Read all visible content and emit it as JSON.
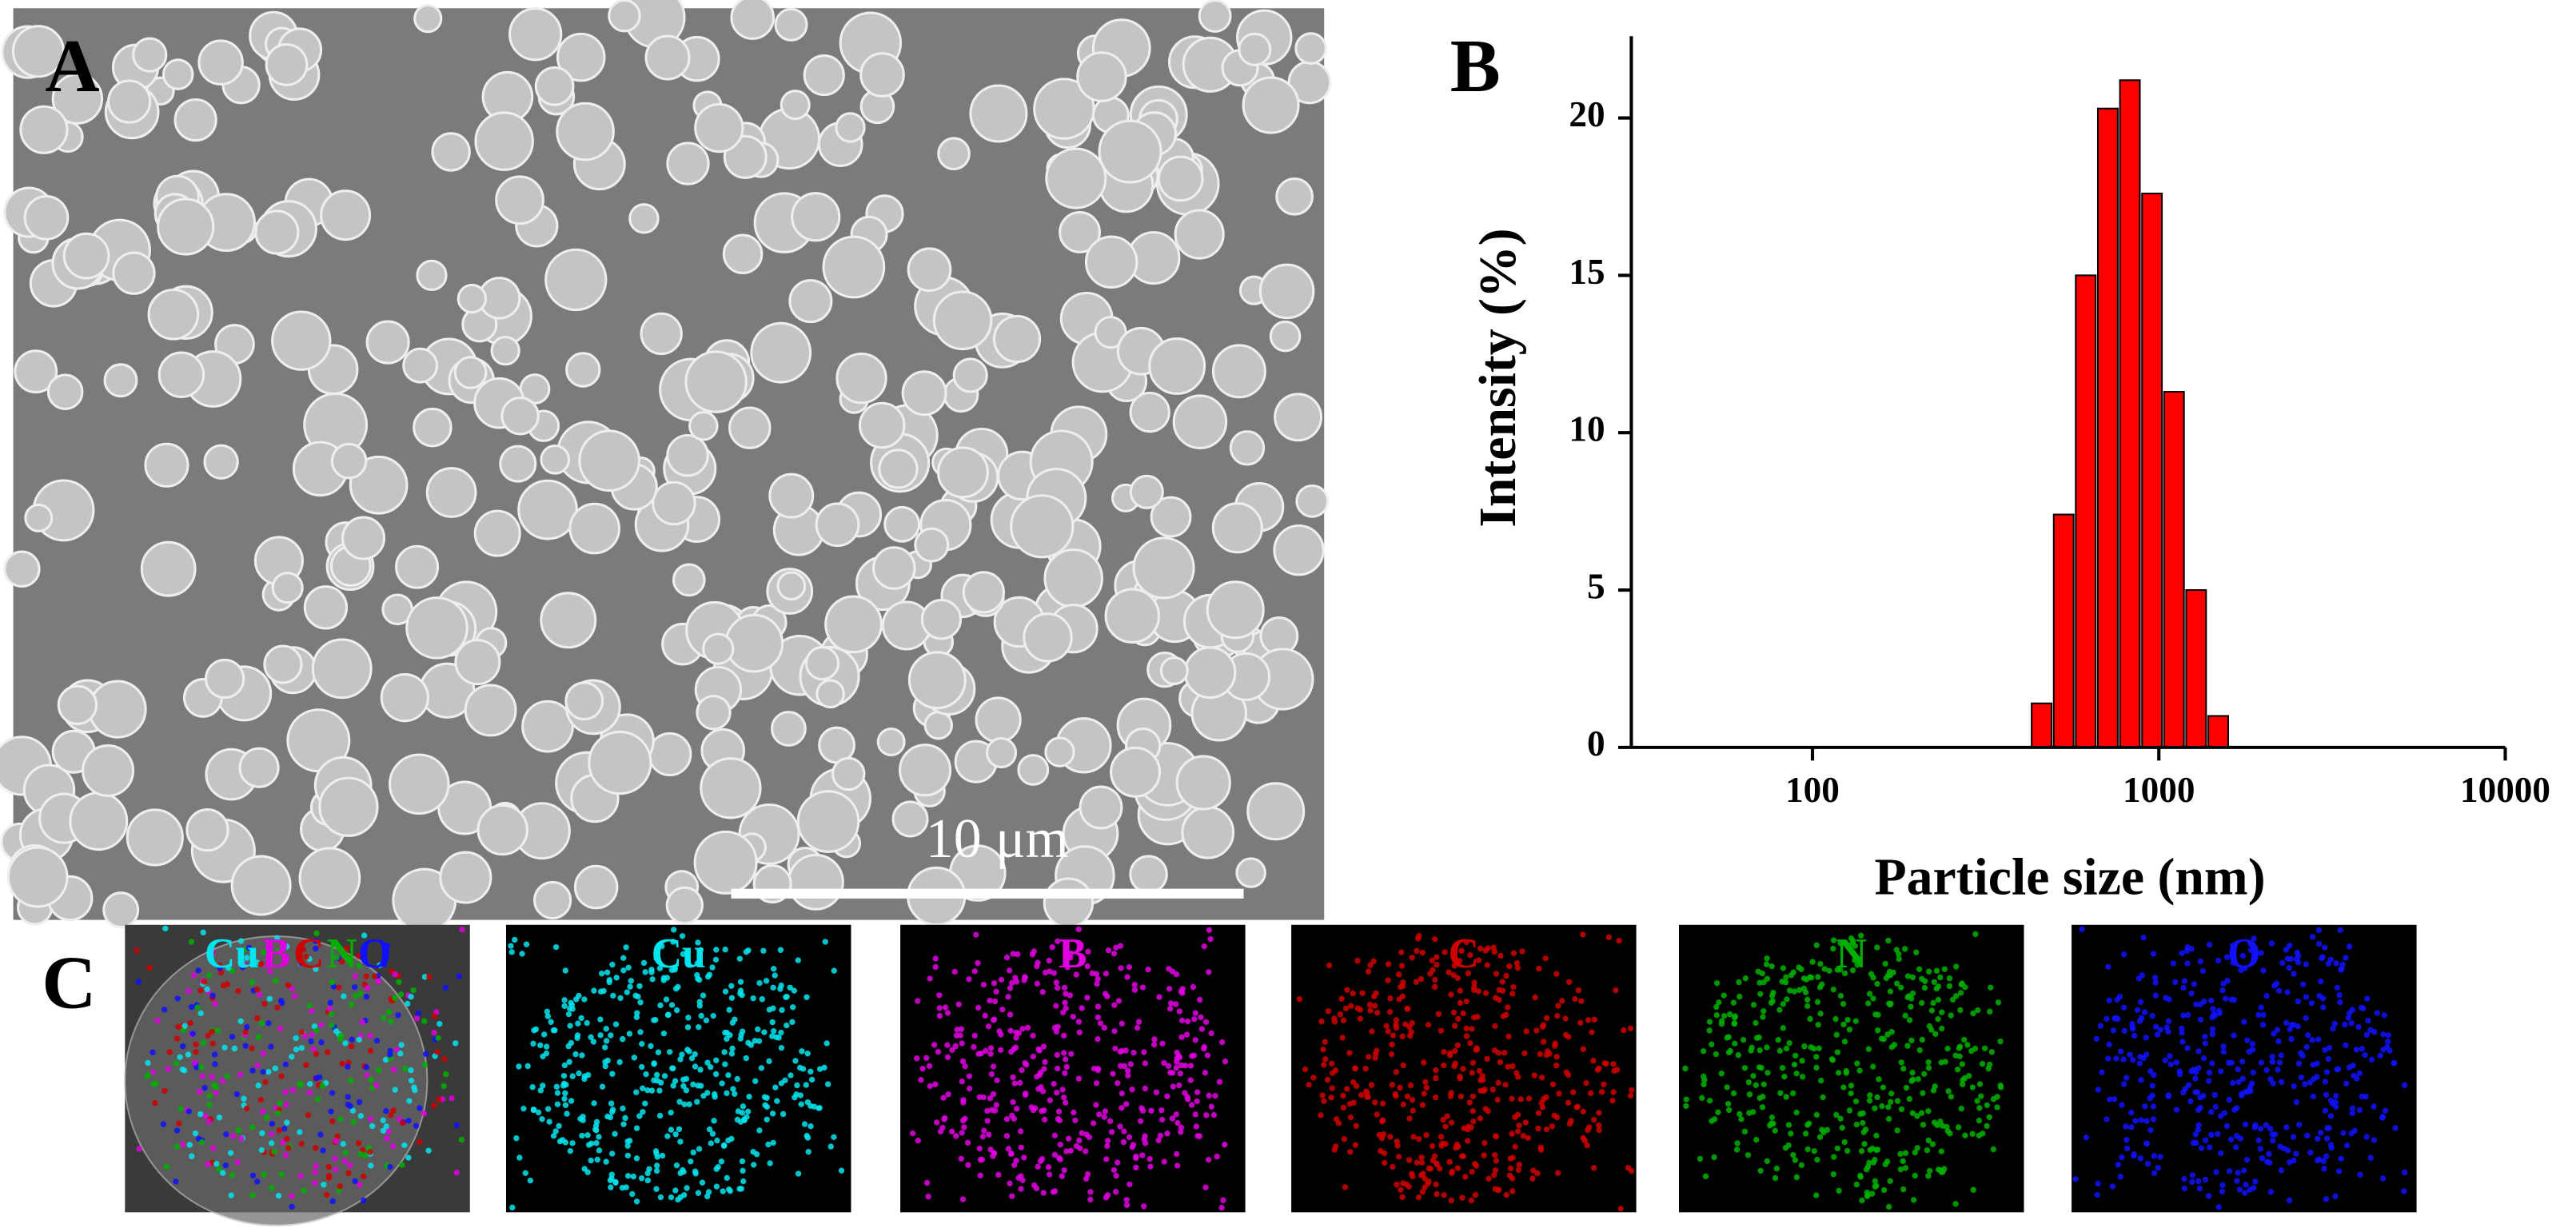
{
  "panel_a": {
    "label": "A",
    "scale_bar": "10 μm"
  },
  "chart_data": {
    "type": "bar",
    "panel_label": "B",
    "x": [
      458.7,
      531.2,
      615.1,
      712.4,
      825,
      955.4,
      1106,
      1281,
      1484
    ],
    "values": [
      1.4,
      7.4,
      15.0,
      20.3,
      21.2,
      17.6,
      11.3,
      5.0,
      1.0
    ],
    "color": "#ff0000",
    "xlabel": "Particle size (nm)",
    "ylabel": "Intensity (%)",
    "xscale": "log",
    "xlim": [
      30,
      10000
    ],
    "xticks": [
      100,
      1000,
      10000
    ],
    "ylim": [
      0,
      22.6
    ],
    "yticks": [
      0,
      5,
      10,
      15,
      20
    ]
  },
  "panel_c": {
    "label": "C",
    "maps": [
      {
        "labels": [
          {
            "text": "Cu",
            "color": "#00e5ee"
          },
          {
            "text": "B",
            "color": "#e000e0"
          },
          {
            "text": "C",
            "color": "#d00000"
          },
          {
            "text": "N",
            "color": "#00b000"
          },
          {
            "text": "O",
            "color": "#1010ff"
          }
        ]
      },
      {
        "labels": [
          {
            "text": "Cu",
            "color": "#00e5ee"
          }
        ]
      },
      {
        "labels": [
          {
            "text": "B",
            "color": "#e000e0"
          }
        ]
      },
      {
        "labels": [
          {
            "text": "C",
            "color": "#d00000"
          }
        ]
      },
      {
        "labels": [
          {
            "text": "N",
            "color": "#00b000"
          }
        ]
      },
      {
        "labels": [
          {
            "text": "O",
            "color": "#1010ff"
          }
        ]
      }
    ]
  }
}
